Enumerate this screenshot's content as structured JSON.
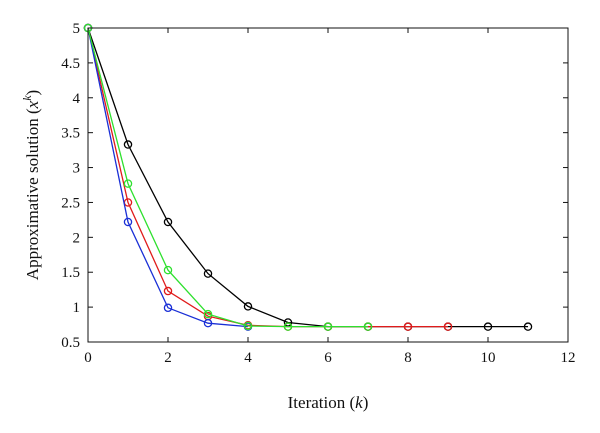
{
  "chart_data": {
    "type": "line",
    "xlabel": "Iteration (k)",
    "xlabel_main": "Iteration (",
    "xlabel_var": "k",
    "xlabel_close": ")",
    "ylabel_main": "Approximative solution (",
    "ylabel_var": "x",
    "ylabel_sup": "k",
    "ylabel_close": ")",
    "xlim": [
      0,
      12
    ],
    "ylim": [
      0.5,
      5
    ],
    "xticks": [
      0,
      2,
      4,
      6,
      8,
      10,
      12
    ],
    "yticks": [
      0.5,
      1,
      1.5,
      2,
      2.5,
      3,
      3.5,
      4,
      4.5,
      5
    ],
    "xtick_labels": [
      "0",
      "2",
      "4",
      "6",
      "8",
      "10",
      "12"
    ],
    "ytick_labels": [
      "0.5",
      "1",
      "1.5",
      "2",
      "2.5",
      "3",
      "3.5",
      "4",
      "4.5",
      "5"
    ],
    "grid": false,
    "series": [
      {
        "color": "#000000",
        "x": [
          0,
          1,
          2,
          3,
          4,
          5,
          6,
          7,
          8,
          9,
          10,
          11
        ],
        "y": [
          5.0,
          3.33,
          2.22,
          1.48,
          1.01,
          0.78,
          0.72,
          0.72,
          0.72,
          0.72,
          0.72,
          0.72
        ]
      },
      {
        "color": "#e01b1b",
        "x": [
          0,
          1,
          2,
          3,
          4,
          5,
          6,
          7,
          8,
          9
        ],
        "y": [
          5.0,
          2.5,
          1.23,
          0.87,
          0.74,
          0.72,
          0.72,
          0.72,
          0.72,
          0.72
        ]
      },
      {
        "color": "#1a2fd6",
        "x": [
          0,
          1,
          2,
          3,
          4
        ],
        "y": [
          5.0,
          2.22,
          0.99,
          0.77,
          0.72
        ]
      },
      {
        "color": "#2ee02e",
        "x": [
          0,
          1,
          2,
          3,
          4,
          5,
          6,
          7
        ],
        "y": [
          5.0,
          2.77,
          1.53,
          0.9,
          0.73,
          0.72,
          0.72,
          0.72
        ]
      }
    ]
  }
}
